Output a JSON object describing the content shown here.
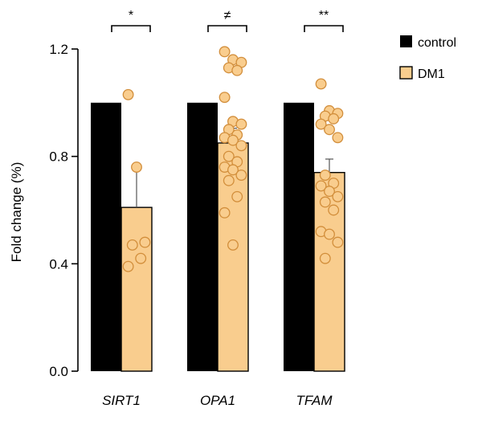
{
  "chart_data": {
    "type": "bar",
    "title": "",
    "xlabel": "",
    "ylabel": "Fold change (%)",
    "ylim": [
      0,
      1.2
    ],
    "yticks": [
      "0.0",
      "0.4",
      "0.8",
      "1.2"
    ],
    "categories": [
      "SIRT1",
      "OPA1",
      "TFAM"
    ],
    "series": [
      {
        "name": "control",
        "color": "#000000",
        "values": [
          1.0,
          1.0,
          1.0
        ]
      },
      {
        "name": "DM1",
        "color": "#f9cd8e",
        "values": [
          0.61,
          0.85,
          0.74
        ],
        "sem": [
          0.14,
          0.055,
          0.05
        ]
      }
    ],
    "individual_points": {
      "SIRT1": [
        1.03,
        0.76,
        0.48,
        0.47,
        0.42,
        0.39
      ],
      "OPA1": [
        1.19,
        1.16,
        1.15,
        1.13,
        1.12,
        1.02,
        0.93,
        0.92,
        0.9,
        0.88,
        0.87,
        0.86,
        0.84,
        0.8,
        0.78,
        0.76,
        0.75,
        0.73,
        0.71,
        0.65,
        0.59,
        0.47
      ],
      "TFAM": [
        1.07,
        0.97,
        0.96,
        0.95,
        0.94,
        0.92,
        0.9,
        0.87,
        0.73,
        0.7,
        0.69,
        0.67,
        0.65,
        0.63,
        0.6,
        0.52,
        0.51,
        0.48,
        0.42
      ]
    },
    "significance": [
      "*",
      "≠",
      "**"
    ],
    "legend": {
      "position": "top-right",
      "entries": [
        "control",
        "DM1"
      ]
    }
  }
}
